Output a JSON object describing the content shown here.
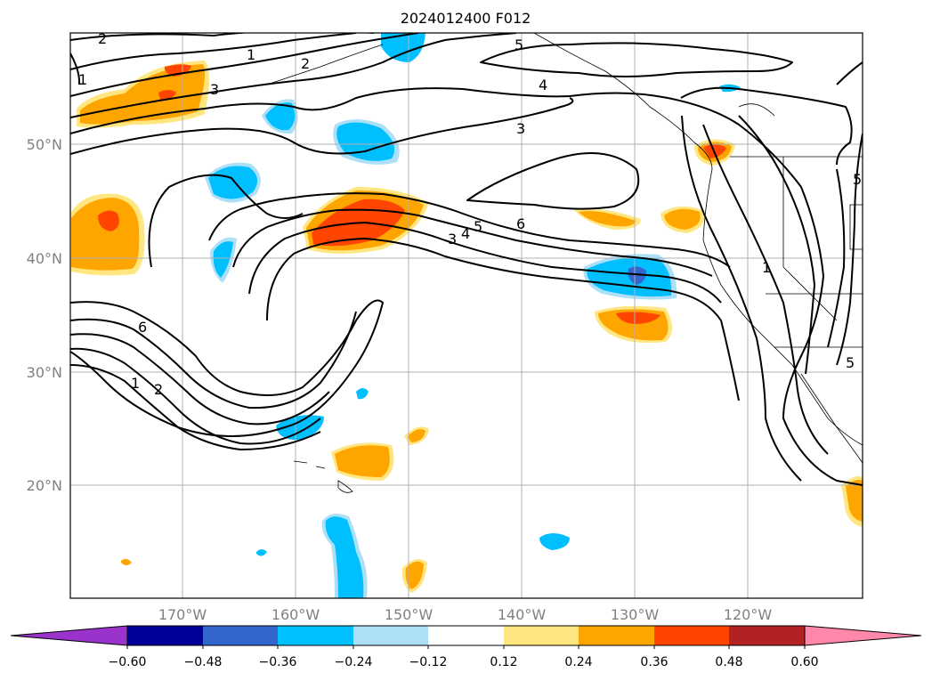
{
  "title": "2024012400 F012",
  "lat_labels": [
    "50°N",
    "40°N",
    "30°N",
    "20°N"
  ],
  "lon_labels": [
    "170°W",
    "160°W",
    "150°W",
    "140°W",
    "130°W",
    "120°W"
  ],
  "colorbar": {
    "ticks": [
      "−0.60",
      "−0.48",
      "−0.36",
      "−0.24",
      "−0.12",
      "0.12",
      "0.24",
      "0.36",
      "0.48",
      "0.60"
    ],
    "colors": [
      "#9933cc",
      "#000099",
      "#3366cc",
      "#00bfff",
      "#ade0f7",
      "#ffffff",
      "#ffe680",
      "#ffa500",
      "#ff4500",
      "#b22222",
      "#ff88aa"
    ]
  },
  "contour_labels": [
    "2",
    "1",
    "2",
    "1",
    "3",
    "5",
    "4",
    "3",
    "5",
    "4",
    "3",
    "6",
    "6",
    "1",
    "2",
    "1",
    "5",
    "5"
  ]
}
